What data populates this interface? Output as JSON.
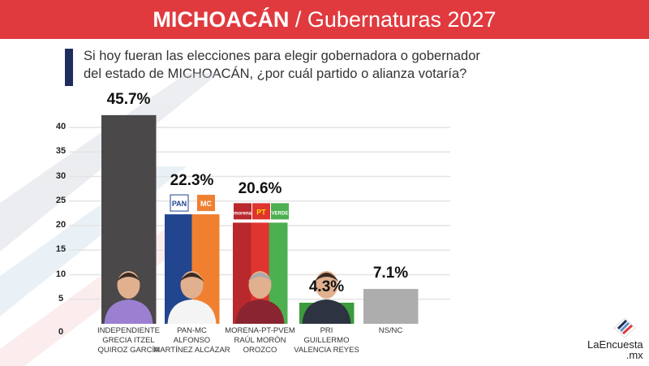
{
  "header": {
    "title_bold": "MICHOACÁN",
    "title_rest": " / Gubernaturas 2027"
  },
  "question": {
    "line1": "Si hoy fueran las elecciones para elegir gobernadora o gobernador",
    "line2": "del estado de MICHOACÁN, ¿por cuál partido o alianza votaría?"
  },
  "logo": {
    "name": "LaEncuesta",
    "suffix": ".mx"
  },
  "chart_data": {
    "type": "bar",
    "ylim": [
      0,
      42.5
    ],
    "yticks": [
      "0",
      "5",
      "10",
      "15",
      "20",
      "25",
      "30",
      "35",
      "40"
    ],
    "grid": true,
    "categories": [
      {
        "party": "INDEPENDIENTE",
        "candidate1": "GRECIA ITZEL",
        "candidate2": "QUIROZ GARCÍA"
      },
      {
        "party": "PAN-MC",
        "candidate1": "ALFONSO",
        "candidate2": "MARTÍNEZ ALCÁZAR"
      },
      {
        "party": "MORENA-PT-PVEM",
        "candidate1": "RAÚL MORÓN",
        "candidate2": "OROZCO"
      },
      {
        "party": "PRI",
        "candidate1": "GUILLERMO",
        "candidate2": "VALENCIA REYES"
      },
      {
        "party": "NS/NC",
        "candidate1": "",
        "candidate2": ""
      }
    ],
    "values": [
      45.7,
      22.3,
      20.6,
      4.3,
      7.1
    ],
    "data_labels": [
      "45.7%",
      "22.3%",
      "20.6%",
      "4.3%",
      "7.1%"
    ],
    "colors": [
      [
        "#4a4848"
      ],
      [
        "#22458f",
        "#f08030"
      ],
      [
        "#b8282c",
        "#e0342f",
        "#4caf50"
      ],
      [
        "#3c9b3c"
      ],
      [
        "#adadad"
      ]
    ],
    "party_logos": [
      [],
      [
        "PAN",
        "MC"
      ],
      [
        "morena",
        "PT",
        "VERDE"
      ],
      [],
      []
    ]
  }
}
